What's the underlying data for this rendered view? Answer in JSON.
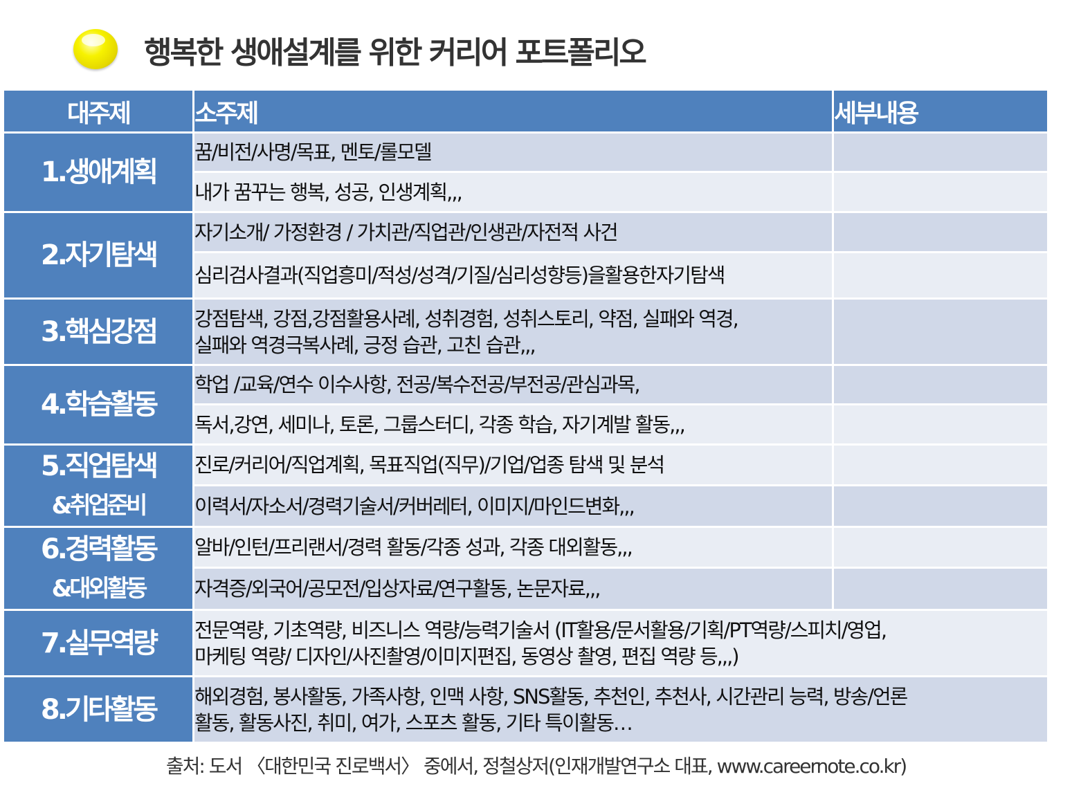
{
  "title": "행복한 생애설계를 위한 커리어 포트폴리오",
  "table": {
    "headers": {
      "major": "대주제",
      "minor": "소주제",
      "detail": "세부내용"
    },
    "sections": [
      {
        "major": "1.생애계획",
        "rows": [
          "꿈/비전/사명/목표, 멘토/롤모델",
          "내가 꿈꾸는 행복, 성공, 인생계획,,,"
        ]
      },
      {
        "major": "2.자기탐색",
        "rows": [
          "자기소개/ 가정환경 / 가치관/직업관/인생관/자전적 사건",
          "심리검사결과(직업흥미/적성/성격/기질/심리성향등)을활용한자기탐색"
        ]
      },
      {
        "major": "3.핵심강점",
        "rows": [
          "강점탐색, 강점,강점활용사례, 성취경험, 성취스토리, 약점, 실패와 역경,",
          "실패와 역경극복사례, 긍정 습관, 고친 습관,,,"
        ]
      },
      {
        "major": "4.학습활동",
        "rows": [
          "학업 /교육/연수 이수사항, 전공/복수전공/부전공/관심과목,",
          "독서,강연, 세미나, 토론, 그룹스터디, 각종 학습, 자기계발 활동,,,"
        ]
      },
      {
        "major": "5.직업탐색",
        "major_sub": "&취업준비",
        "rows": [
          "진로/커리어/직업계획, 목표직업(직무)/기업/업종 탐색 및 분석",
          "이력서/자소서/경력기술서/커버레터, 이미지/마인드변화,,,"
        ]
      },
      {
        "major": "6.경력활동",
        "major_sub": "&대외활동",
        "rows": [
          "알바/인턴/프리랜서/경력 활동/각종 성과, 각종 대외활동,,,",
          "자격증/외국어/공모전/입상자료/연구활동, 논문자료,,,"
        ]
      },
      {
        "major": "7.실무역량",
        "rows": [
          "전문역량, 기초역량, 비즈니스 역량/능력기술서 (IT활용/문서활용/기획/PT역량/스피치/영업,",
          "마케팅 역량/ 디자인/사진촬영/이미지편집, 동영상 촬영, 편집 역량 등,,,)"
        ]
      },
      {
        "major": "8.기타활동",
        "rows": [
          "해외경험, 봉사활동, 가족사항, 인맥 사항, SNS활동, 추천인, 추천사, 시간관리 능력, 방송/언론",
          "활동, 활동사진, 취미, 여가, 스포츠 활동, 기타 특이활동…"
        ]
      }
    ]
  },
  "source": "출처: 도서 〈대한민국 진로백서〉 중에서, 정철상저(인재개발연구소 대표, www.careernote.co.kr)",
  "colors": {
    "header_bg": "#4f81bd",
    "row_dark": "#d0d8e8",
    "row_light": "#e9edf4",
    "bullet": "#f7f200"
  }
}
